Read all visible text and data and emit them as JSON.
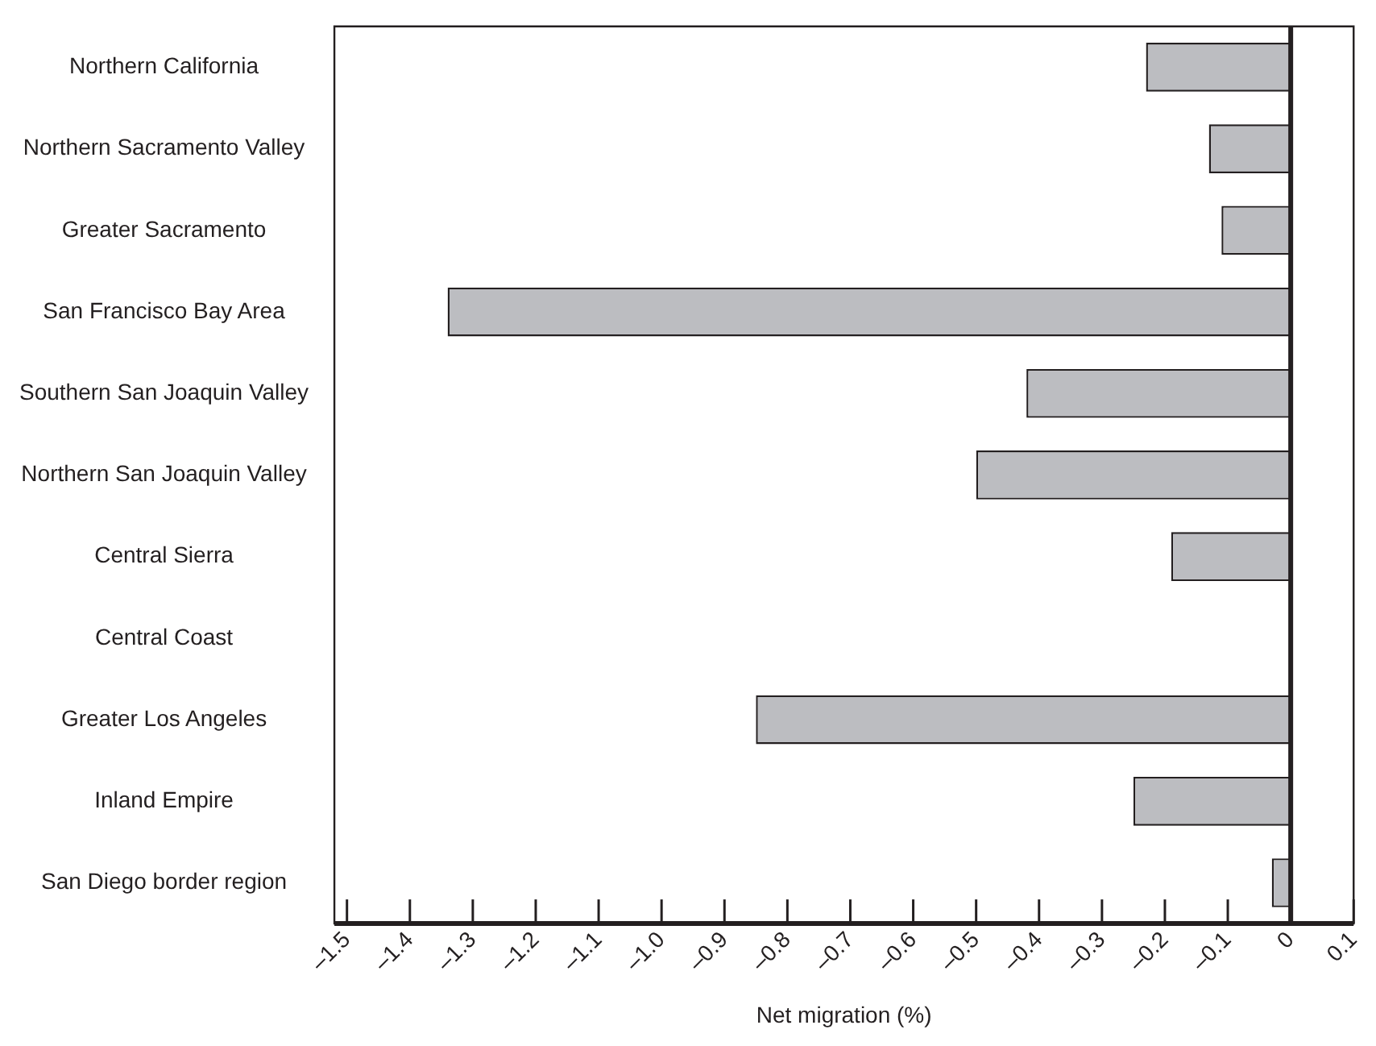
{
  "chart_data": {
    "type": "bar",
    "orientation": "horizontal",
    "xlabel": "Net migration (%)",
    "categories": [
      "Northern California",
      "Northern Sacramento Valley",
      "Greater Sacramento",
      "San Francisco Bay Area",
      "Southern San Joaquin Valley",
      "Northern San Joaquin Valley",
      "Central Sierra",
      "Central Coast",
      "Greater Los Angeles",
      "Inland Empire",
      "San Diego border region"
    ],
    "values": [
      -0.23,
      -0.13,
      -0.11,
      -1.34,
      -0.42,
      -0.5,
      -0.19,
      0,
      -0.85,
      -0.25,
      -0.03
    ],
    "color": "#bcbdc1",
    "xlim": [
      -1.52,
      0.1
    ],
    "xticks": [
      {
        "value": -1.5,
        "label": "–1.5"
      },
      {
        "value": -1.4,
        "label": "–1.4"
      },
      {
        "value": -1.3,
        "label": "–1.3"
      },
      {
        "value": -1.2,
        "label": "–1.2"
      },
      {
        "value": -1.1,
        "label": "–1.1"
      },
      {
        "value": -1.0,
        "label": "–1.0"
      },
      {
        "value": -0.9,
        "label": "–0.9"
      },
      {
        "value": -0.8,
        "label": "–0.8"
      },
      {
        "value": -0.7,
        "label": "–0.7"
      },
      {
        "value": -0.6,
        "label": "–0.6"
      },
      {
        "value": -0.5,
        "label": "–0.5"
      },
      {
        "value": -0.4,
        "label": "–0.4"
      },
      {
        "value": -0.3,
        "label": "–0.3"
      },
      {
        "value": -0.2,
        "label": "–0.2"
      },
      {
        "value": -0.1,
        "label": "–0.1"
      },
      0,
      0.1
    ],
    "ref_lines": [
      {
        "axis": "x",
        "value": 0
      }
    ],
    "grid": false,
    "legend": false
  }
}
